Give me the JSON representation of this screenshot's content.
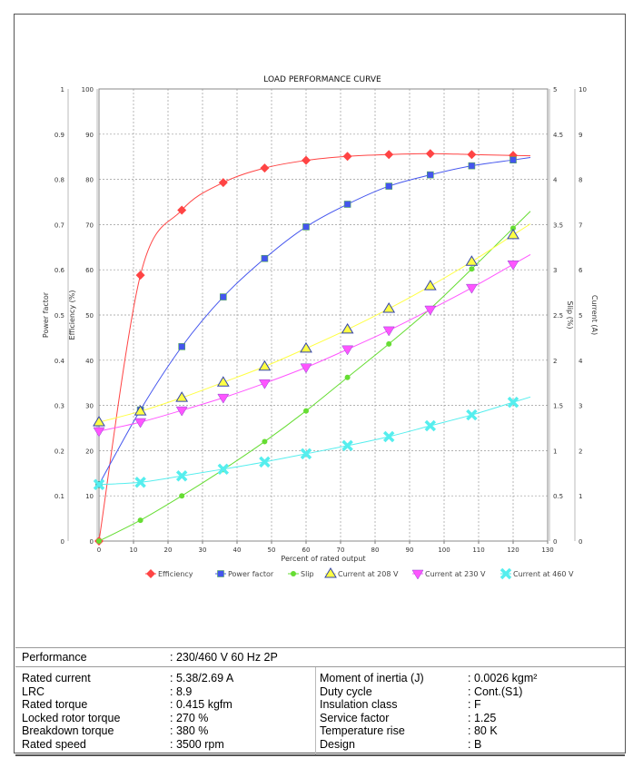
{
  "chart_data": {
    "type": "line",
    "title": "LOAD PERFORMANCE CURVE",
    "xlabel": "Percent of rated output",
    "xlim": [
      0,
      130
    ],
    "xticks": [
      0,
      10,
      20,
      30,
      40,
      50,
      60,
      70,
      80,
      90,
      100,
      110,
      120,
      130
    ],
    "grid": true,
    "legend_position": "bottom",
    "axes": {
      "power_factor": {
        "label": "Power factor",
        "side": "left-outer",
        "ylim": [
          0,
          1
        ],
        "ticks": [
          "0",
          "0.1",
          "0.2",
          "0.3",
          "0.4",
          "0.5",
          "0.6",
          "0.7",
          "0.8",
          "0.9",
          "1"
        ]
      },
      "efficiency": {
        "label": "Efficiency (%)",
        "side": "left-inner",
        "ylim": [
          0,
          100
        ],
        "ticks": [
          "0",
          "10",
          "20",
          "30",
          "40",
          "50",
          "60",
          "70",
          "80",
          "90",
          "100"
        ]
      },
      "slip": {
        "label": "Slip (%)",
        "side": "right-inner",
        "ylim": [
          0,
          5
        ],
        "ticks": [
          "0",
          "0.5",
          "1",
          "1.5",
          "2",
          "2.5",
          "3",
          "3.5",
          "4",
          "4.5",
          "5"
        ]
      },
      "current": {
        "label": "Current (A)",
        "side": "right-outer",
        "ylim": [
          0,
          10
        ],
        "ticks": [
          "0",
          "1",
          "2",
          "3",
          "4",
          "5",
          "6",
          "7",
          "8",
          "9",
          "10"
        ]
      }
    },
    "x": [
      0,
      12,
      24,
      36,
      48,
      60,
      72,
      84,
      96,
      108,
      120
    ],
    "series": [
      {
        "name": "Efficiency",
        "axis": "efficiency",
        "color": "#ff4444",
        "marker": "diamond",
        "values": [
          0,
          58.8,
          73.2,
          79.3,
          82.5,
          84.2,
          85.1,
          85.5,
          85.7,
          85.5,
          85.3
        ]
      },
      {
        "name": "Power factor",
        "axis": "power_factor",
        "color": "#4455ee",
        "marker": "square",
        "values": [
          0.125,
          0.29,
          0.43,
          0.54,
          0.625,
          0.695,
          0.745,
          0.785,
          0.81,
          0.83,
          0.843
        ]
      },
      {
        "name": "Slip",
        "axis": "slip",
        "color": "#66dd33",
        "marker": "circle",
        "values": [
          0,
          0.23,
          0.5,
          0.79,
          1.1,
          1.44,
          1.81,
          2.18,
          2.57,
          3.01,
          3.46
        ]
      },
      {
        "name": "Current at 208 V",
        "axis": "current",
        "color": "#ffff44",
        "marker": "triangle-up",
        "values": [
          2.63,
          2.87,
          3.17,
          3.51,
          3.86,
          4.26,
          4.68,
          5.14,
          5.64,
          6.18,
          6.77
        ]
      },
      {
        "name": "Current at 230 V",
        "axis": "current",
        "color": "#ff55ff",
        "marker": "triangle-down",
        "values": [
          2.43,
          2.63,
          2.89,
          3.17,
          3.49,
          3.84,
          4.24,
          4.66,
          5.12,
          5.6,
          6.12
        ]
      },
      {
        "name": "Current at 460 V",
        "axis": "current",
        "color": "#55eeee",
        "marker": "x",
        "values": [
          1.25,
          1.3,
          1.44,
          1.59,
          1.75,
          1.93,
          2.11,
          2.31,
          2.55,
          2.79,
          3.07
        ]
      }
    ]
  },
  "table": {
    "performance": {
      "label": "Performance",
      "value": ": 230/460 V 60 Hz 2P"
    },
    "left": [
      {
        "label": "Rated current",
        "value": ": 5.38/2.69 A"
      },
      {
        "label": "LRC",
        "value": ": 8.9"
      },
      {
        "label": "Rated torque",
        "value": ": 0.415 kgfm"
      },
      {
        "label": "Locked rotor torque",
        "value": ": 270 %"
      },
      {
        "label": "Breakdown torque",
        "value": ": 380 %"
      },
      {
        "label": "Rated speed",
        "value": ": 3500 rpm"
      }
    ],
    "right": [
      {
        "label": "Moment of inertia (J)",
        "value": ": 0.0026 kgm²"
      },
      {
        "label": "Duty cycle",
        "value": ": Cont.(S1)"
      },
      {
        "label": "Insulation class",
        "value": ": F"
      },
      {
        "label": "Service factor",
        "value": ": 1.25"
      },
      {
        "label": "Temperature rise",
        "value": ": 80 K"
      },
      {
        "label": "Design",
        "value": ": B"
      }
    ]
  }
}
